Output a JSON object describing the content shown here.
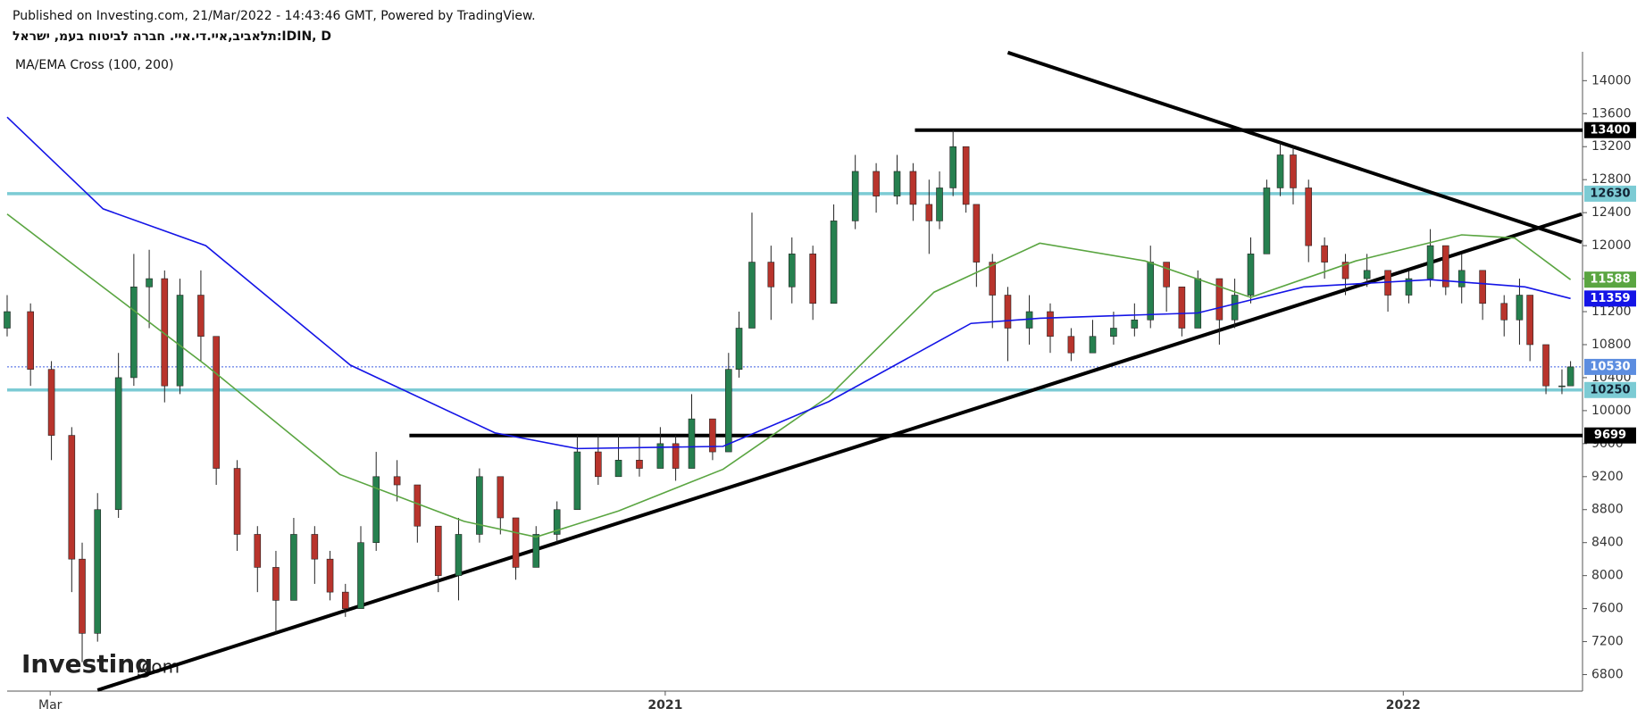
{
  "header": {
    "published": "Published on Investing.com, 21/Mar/2022 - 14:43:46 GMT, Powered by TradingView.",
    "symbol": "תלאביב,איי.די.איי. חברה לביטוח בעמ, ישראל:IDIN, D",
    "indicator": "MA/EMA Cross (100, 200)",
    "logo": "Investing",
    "logo_suffix": ".com"
  },
  "chart_data": {
    "type": "candlestick",
    "up_color": "#26804f",
    "down_color": "#b8342c",
    "xlim": [
      -0.7,
      24.9
    ],
    "ylim": [
      6600,
      14350
    ],
    "xticks": [
      {
        "value": 0,
        "label": "Mar"
      },
      {
        "value": 10,
        "label": "2021"
      },
      {
        "value": 22,
        "label": "2022"
      }
    ],
    "yticks": [
      6800,
      7200,
      7600,
      8000,
      8400,
      8800,
      9200,
      9600,
      10000,
      10400,
      10800,
      11200,
      11600,
      12000,
      12400,
      12800,
      13200,
      13600,
      14000
    ],
    "candles": {
      "x": [
        -0.7,
        -0.32,
        0.02,
        0.35,
        0.52,
        0.77,
        1.11,
        1.36,
        1.61,
        1.86,
        2.11,
        2.45,
        2.7,
        3.04,
        3.37,
        3.67,
        3.96,
        4.3,
        4.55,
        4.8,
        5.05,
        5.3,
        5.64,
        5.97,
        6.31,
        6.64,
        6.98,
        7.32,
        7.57,
        7.9,
        8.24,
        8.57,
        8.91,
        9.24,
        9.58,
        9.92,
        10.17,
        10.43,
        10.77,
        11.03,
        11.2,
        11.41,
        11.72,
        12.06,
        12.4,
        12.74,
        13.09,
        13.43,
        13.77,
        14.03,
        14.29,
        14.46,
        14.68,
        14.89,
        15.06,
        15.32,
        15.57,
        15.92,
        16.26,
        16.6,
        16.95,
        17.29,
        17.63,
        17.89,
        18.15,
        18.4,
        18.66,
        19.01,
        19.26,
        19.52,
        19.78,
        20.0,
        20.21,
        20.46,
        20.72,
        21.06,
        21.41,
        21.75,
        22.09,
        22.44,
        22.69,
        22.95,
        23.29,
        23.64,
        23.89,
        24.06,
        24.32,
        24.58,
        24.72
      ],
      "open": [
        11000,
        11200,
        10500,
        9700,
        8200,
        7300,
        8800,
        10400,
        11500,
        11600,
        10300,
        11400,
        10900,
        9300,
        8500,
        8100,
        7700,
        8500,
        8200,
        7800,
        7600,
        8400,
        9200,
        9100,
        8600,
        8000,
        8500,
        9200,
        8700,
        8100,
        8500,
        8800,
        9500,
        9200,
        9400,
        9300,
        9600,
        9300,
        9900,
        9500,
        10500,
        11000,
        11800,
        11500,
        11900,
        11300,
        12300,
        12900,
        12600,
        12900,
        12500,
        12300,
        12700,
        13200,
        12500,
        11800,
        11400,
        11000,
        11200,
        10900,
        10700,
        10900,
        11000,
        11100,
        11800,
        11500,
        11000,
        11600,
        11100,
        11400,
        11900,
        12700,
        13100,
        12700,
        12000,
        11800,
        11600,
        11700,
        11400,
        11600,
        12000,
        11500,
        11700,
        11300,
        11100,
        11400,
        10800,
        10300,
        10300
      ],
      "high": [
        11400,
        11300,
        10600,
        9800,
        8400,
        9000,
        10700,
        11900,
        11950,
        11700,
        11600,
        11700,
        10900,
        9400,
        8600,
        8300,
        8700,
        8600,
        8300,
        7900,
        8600,
        9500,
        9400,
        9100,
        8600,
        8700,
        9300,
        9200,
        8700,
        8600,
        8900,
        9700,
        9700,
        9700,
        9700,
        9800,
        9700,
        10200,
        9900,
        10700,
        11200,
        12400,
        12000,
        12100,
        12000,
        12500,
        13100,
        13000,
        13100,
        13000,
        12800,
        12900,
        13400,
        12700,
        12100,
        11900,
        11500,
        11400,
        11300,
        11000,
        11100,
        11200,
        11300,
        12000,
        11800,
        11500,
        11700,
        11600,
        11600,
        12100,
        12800,
        13250,
        13200,
        12800,
        12100,
        11900,
        11900,
        11700,
        11700,
        12200,
        12000,
        11900,
        11700,
        11400,
        11600,
        11400,
        10800,
        10500,
        10600
      ],
      "low": [
        10900,
        10300,
        9400,
        7800,
        6950,
        7200,
        8700,
        10300,
        11000,
        10100,
        10200,
        10600,
        9100,
        8300,
        7800,
        7300,
        7700,
        7900,
        7700,
        7500,
        7600,
        8300,
        8900,
        8400,
        7800,
        7700,
        8400,
        8500,
        7950,
        8100,
        8400,
        8800,
        9100,
        9200,
        9200,
        9300,
        9150,
        9300,
        9400,
        9500,
        10400,
        11000,
        11100,
        11300,
        11100,
        11300,
        12200,
        12400,
        12500,
        12300,
        11900,
        12200,
        12600,
        12400,
        11500,
        11000,
        10600,
        10800,
        10700,
        10600,
        10700,
        10800,
        10900,
        11000,
        11200,
        10900,
        11000,
        10800,
        11000,
        11300,
        11900,
        12600,
        12500,
        11800,
        11600,
        11400,
        11500,
        11200,
        11300,
        11500,
        11400,
        11300,
        11100,
        10900,
        10800,
        10600,
        10200,
        10200,
        10300
      ],
      "close": [
        11200,
        10500,
        9700,
        8200,
        7300,
        8800,
        10400,
        11500,
        11600,
        10300,
        11400,
        10900,
        9300,
        8500,
        8100,
        7700,
        8500,
        8200,
        7800,
        7600,
        8400,
        9200,
        9100,
        8600,
        8000,
        8500,
        9200,
        8700,
        8100,
        8500,
        8800,
        9500,
        9200,
        9400,
        9300,
        9600,
        9300,
        9900,
        9500,
        10500,
        11000,
        11800,
        11500,
        11900,
        11300,
        12300,
        12900,
        12600,
        12900,
        12500,
        12300,
        12700,
        13200,
        12500,
        11800,
        11400,
        11000,
        11200,
        10900,
        10700,
        10900,
        11000,
        11100,
        11800,
        11500,
        11000,
        11600,
        11100,
        11400,
        11900,
        12700,
        13100,
        12700,
        12000,
        11800,
        11600,
        11700,
        11400,
        11600,
        12000,
        11500,
        11700,
        11300,
        11100,
        11400,
        10800,
        10300,
        10300,
        10530
      ]
    },
    "series": [
      {
        "name": "MA 100",
        "color": "#5aa541",
        "x": [
          -0.7,
          0.52,
          2.53,
          4.71,
          6.73,
          7.9,
          9.24,
          10.94,
          12.66,
          14.37,
          16.09,
          17.8,
          19.52,
          21.23,
          22.95,
          23.81,
          24.72
        ],
        "values": [
          12383,
          11689,
          10552,
          9226,
          8658,
          8468,
          8784,
          9289,
          10173,
          11436,
          12030,
          11815,
          11373,
          11815,
          12131,
          12093,
          11588
        ]
      },
      {
        "name": "EMA 200",
        "color": "#1414e6",
        "x": [
          -0.7,
          0.86,
          2.53,
          4.88,
          7.23,
          8.57,
          10.94,
          12.66,
          14.97,
          16.09,
          18.66,
          20.38,
          22.44,
          23.98,
          24.72
        ],
        "values": [
          13558,
          12446,
          12000,
          10552,
          9731,
          9540,
          9567,
          10110,
          11057,
          11120,
          11184,
          11500,
          11588,
          11500,
          11359
        ]
      }
    ],
    "hlines": [
      {
        "value": 13400,
        "color": "#000000",
        "x": 14.06
      },
      {
        "value": 12630,
        "color": "#7ccbd4",
        "x": -0.7
      },
      {
        "value": 10530,
        "color": "#3f5fe0",
        "x": -0.7,
        "dotted": true
      },
      {
        "value": 10250,
        "color": "#7ccbd4",
        "x": -0.7
      },
      {
        "value": 9699,
        "color": "#000000",
        "x": 5.84
      }
    ],
    "trendlines": [
      {
        "x": [
          0.77,
          24.9
        ],
        "values": [
          6612,
          12383
        ]
      },
      {
        "x": [
          15.57,
          24.9
        ],
        "values": [
          14341,
          12042
        ]
      }
    ]
  }
}
